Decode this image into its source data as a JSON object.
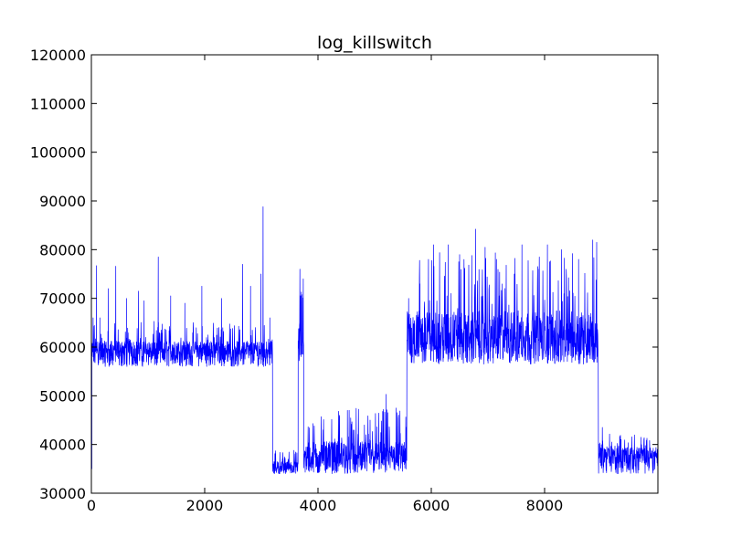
{
  "chart_data": {
    "type": "line",
    "title": "log_killswitch",
    "xlabel": "",
    "ylabel": "",
    "xlim": [
      0,
      10000
    ],
    "ylim": [
      30000,
      120000
    ],
    "grid": false,
    "legend": "none",
    "x_ticks": [
      0,
      2000,
      4000,
      6000,
      8000
    ],
    "x_tick_labels": [
      "0",
      "2000",
      "4000",
      "6000",
      "8000"
    ],
    "y_ticks": [
      30000,
      40000,
      50000,
      60000,
      70000,
      80000,
      90000,
      100000,
      110000,
      120000
    ],
    "y_tick_labels": [
      "30000",
      "40000",
      "50000",
      "60000",
      "70000",
      "80000",
      "90000",
      "100000",
      "110000",
      "120000"
    ],
    "series": [
      {
        "color": "#0000ff",
        "segments": [
          {
            "x_start": 0,
            "x_end": 3200,
            "baseline": 58500,
            "min": 56000,
            "max": 67000,
            "note_spike_max": 88800
          },
          {
            "x_start": 3200,
            "x_end": 3650,
            "baseline": 35000,
            "min": 34000,
            "max": 40000
          },
          {
            "x_start": 3650,
            "x_end": 3750,
            "baseline": 61000,
            "min": 56000,
            "max": 76000
          },
          {
            "x_start": 3750,
            "x_end": 5570,
            "baseline": 36500,
            "min": 34000,
            "max": 50300
          },
          {
            "x_start": 5570,
            "x_end": 8950,
            "baseline": 60500,
            "min": 56500,
            "max": 84200
          },
          {
            "x_start": 8950,
            "x_end": 10000,
            "baseline": 37000,
            "min": 34000,
            "max": 43500
          }
        ],
        "spikes": [
          [
            8,
            35000
          ],
          [
            30,
            66000
          ],
          [
            90,
            76700
          ],
          [
            150,
            66000
          ],
          [
            300,
            72000
          ],
          [
            430,
            76600
          ],
          [
            620,
            70000
          ],
          [
            830,
            71500
          ],
          [
            930,
            69500
          ],
          [
            1180,
            78500
          ],
          [
            1400,
            70500
          ],
          [
            1650,
            69000
          ],
          [
            1950,
            72500
          ],
          [
            2300,
            70000
          ],
          [
            2670,
            77000
          ],
          [
            2810,
            72500
          ],
          [
            2990,
            75000
          ],
          [
            3030,
            88800
          ],
          [
            3150,
            66000
          ],
          [
            3680,
            76000
          ],
          [
            3740,
            74000
          ],
          [
            4380,
            46000
          ],
          [
            4520,
            47000
          ],
          [
            4820,
            44000
          ],
          [
            4920,
            45000
          ],
          [
            5200,
            50300
          ],
          [
            5380,
            47500
          ],
          [
            5600,
            70000
          ],
          [
            5800,
            73000
          ],
          [
            5950,
            78000
          ],
          [
            6040,
            81000
          ],
          [
            6300,
            81000
          ],
          [
            6500,
            79000
          ],
          [
            6780,
            84200
          ],
          [
            6950,
            80500
          ],
          [
            7150,
            78000
          ],
          [
            7600,
            81000
          ],
          [
            7900,
            76000
          ],
          [
            8050,
            81000
          ],
          [
            8300,
            80000
          ],
          [
            8600,
            78000
          ],
          [
            8850,
            82000
          ],
          [
            8920,
            81500
          ],
          [
            9020,
            43500
          ],
          [
            9350,
            41000
          ],
          [
            9700,
            41500
          ]
        ]
      }
    ]
  }
}
